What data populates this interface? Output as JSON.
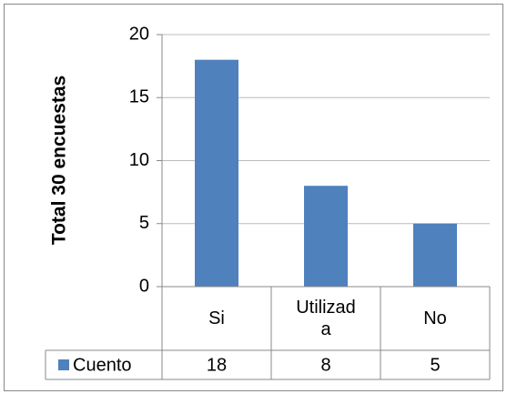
{
  "chart_data": {
    "type": "bar",
    "y_label": "Total 30 encuestas",
    "categories": [
      "Si",
      "Utilizada",
      "No"
    ],
    "series": [
      {
        "name": "Cuento",
        "color": "#4f81bd",
        "values": [
          18,
          8,
          5
        ]
      }
    ],
    "ylim": [
      0,
      20
    ],
    "yticks": [
      0,
      5,
      10,
      15,
      20
    ],
    "grid": true,
    "data_table": true
  }
}
